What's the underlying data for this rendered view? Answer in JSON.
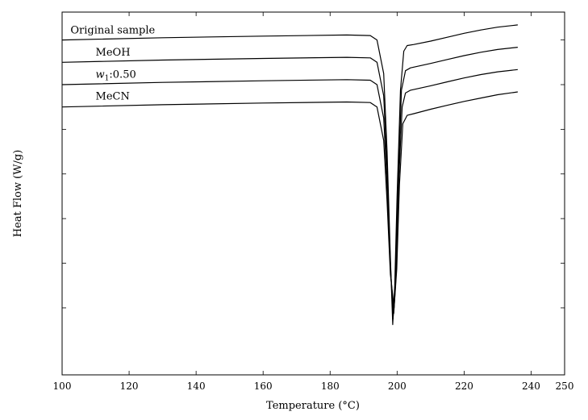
{
  "chart_data": {
    "type": "line",
    "title": "",
    "xlabel": "Temperature (°C)",
    "ylabel": "Heat Flow (W/g)",
    "xlim": [
      100,
      250
    ],
    "ylim": [
      -6.0,
      0.5
    ],
    "xticks": [
      100,
      120,
      140,
      160,
      180,
      200,
      220,
      240,
      250
    ],
    "grid": false,
    "legend": "inline labels",
    "series": [
      {
        "name": "Original sample",
        "points": [
          [
            100,
            0.0
          ],
          [
            130,
            0.04
          ],
          [
            160,
            0.07
          ],
          [
            185,
            0.09
          ],
          [
            192,
            0.08
          ],
          [
            194,
            0.0
          ],
          [
            196,
            -0.6
          ],
          [
            197,
            -2.0
          ],
          [
            198,
            -3.9
          ],
          [
            198.7,
            -5.1
          ],
          [
            199.3,
            -4.4
          ],
          [
            200,
            -2.8
          ],
          [
            201,
            -0.9
          ],
          [
            202,
            -0.2
          ],
          [
            203,
            -0.1
          ],
          [
            205,
            -0.08
          ],
          [
            210,
            -0.02
          ],
          [
            215,
            0.05
          ],
          [
            220,
            0.12
          ],
          [
            225,
            0.18
          ],
          [
            230,
            0.23
          ],
          [
            236,
            0.27
          ]
        ]
      },
      {
        "name": "MeOH",
        "points": [
          [
            100,
            -0.4
          ],
          [
            130,
            -0.36
          ],
          [
            160,
            -0.33
          ],
          [
            185,
            -0.31
          ],
          [
            192,
            -0.32
          ],
          [
            194,
            -0.4
          ],
          [
            196,
            -1.0
          ],
          [
            197,
            -2.3
          ],
          [
            198,
            -4.0
          ],
          [
            198.8,
            -5.0
          ],
          [
            199.5,
            -4.3
          ],
          [
            200.3,
            -2.6
          ],
          [
            201.3,
            -0.9
          ],
          [
            202.5,
            -0.55
          ],
          [
            204,
            -0.5
          ],
          [
            210,
            -0.42
          ],
          [
            215,
            -0.35
          ],
          [
            220,
            -0.28
          ],
          [
            225,
            -0.22
          ],
          [
            230,
            -0.17
          ],
          [
            236,
            -0.13
          ]
        ]
      },
      {
        "name": "w1:0.50",
        "points": [
          [
            100,
            -0.8
          ],
          [
            130,
            -0.76
          ],
          [
            160,
            -0.73
          ],
          [
            185,
            -0.71
          ],
          [
            192,
            -0.72
          ],
          [
            194,
            -0.8
          ],
          [
            196,
            -1.4
          ],
          [
            197,
            -2.6
          ],
          [
            198,
            -4.1
          ],
          [
            199,
            -4.9
          ],
          [
            199.7,
            -4.2
          ],
          [
            200.5,
            -2.5
          ],
          [
            201.5,
            -1.2
          ],
          [
            202.5,
            -0.95
          ],
          [
            204,
            -0.9
          ],
          [
            210,
            -0.82
          ],
          [
            215,
            -0.75
          ],
          [
            220,
            -0.68
          ],
          [
            225,
            -0.62
          ],
          [
            230,
            -0.57
          ],
          [
            236,
            -0.53
          ]
        ]
      },
      {
        "name": "MeCN",
        "points": [
          [
            100,
            -1.2
          ],
          [
            130,
            -1.16
          ],
          [
            160,
            -1.13
          ],
          [
            185,
            -1.11
          ],
          [
            192,
            -1.12
          ],
          [
            194,
            -1.2
          ],
          [
            196,
            -1.8
          ],
          [
            197,
            -2.9
          ],
          [
            198,
            -4.2
          ],
          [
            199.1,
            -4.8
          ],
          [
            199.9,
            -4.1
          ],
          [
            200.7,
            -2.6
          ],
          [
            201.7,
            -1.5
          ],
          [
            203,
            -1.35
          ],
          [
            205,
            -1.32
          ],
          [
            210,
            -1.24
          ],
          [
            215,
            -1.17
          ],
          [
            220,
            -1.1
          ],
          [
            225,
            -1.04
          ],
          [
            230,
            -0.98
          ],
          [
            236,
            -0.93
          ]
        ]
      }
    ],
    "labels": [
      {
        "text": "Original sample",
        "at": [
          102.5,
          0.12
        ]
      },
      {
        "text": "MeOH",
        "at": [
          110,
          -0.28
        ]
      },
      {
        "text": "MeCN",
        "at": [
          110,
          -1.07
        ]
      }
    ],
    "label_w1": {
      "var": "w",
      "sub": "1",
      "rest": ":0.50",
      "at": [
        110,
        -0.68
      ]
    }
  }
}
